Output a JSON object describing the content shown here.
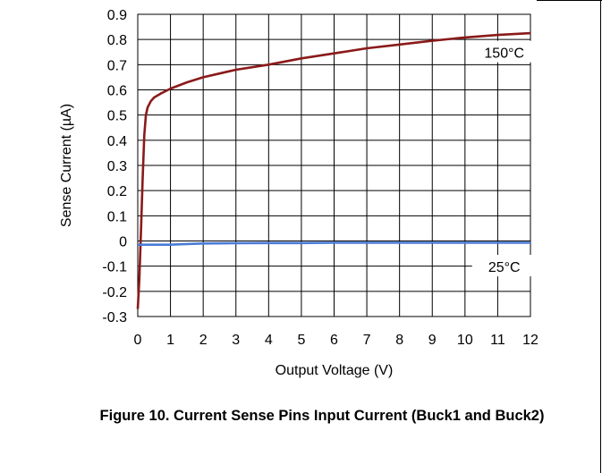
{
  "caption": "Figure 10. Current Sense Pins Input Current (Buck1 and Buck2)",
  "chart_data": {
    "type": "line",
    "title": "",
    "xlabel": "Output Voltage (V)",
    "ylabel": "Sense Current (µA)",
    "xlim": [
      0,
      12
    ],
    "ylim": [
      -0.3,
      0.9
    ],
    "xticks": [
      0,
      1,
      2,
      3,
      4,
      5,
      6,
      7,
      8,
      9,
      10,
      11,
      12
    ],
    "yticks": [
      0.9,
      0.8,
      0.7,
      0.6,
      0.5,
      0.4,
      0.3,
      0.2,
      0.1,
      0,
      -0.1,
      -0.2,
      -0.3
    ],
    "ytick_labels": [
      "0.9",
      "0.8",
      "0.7",
      "0.6",
      "0.5",
      "0.4",
      "0.3",
      "0.2",
      "0.1",
      "0",
      "-0.1",
      "-0.2",
      "-0.3"
    ],
    "grid": true,
    "series": [
      {
        "name": "150°C",
        "color": "#8b1a1a",
        "x": [
          0,
          0.05,
          0.1,
          0.15,
          0.2,
          0.25,
          0.3,
          0.4,
          0.5,
          0.7,
          1.0,
          1.5,
          2,
          2.5,
          3,
          4,
          5,
          6,
          7,
          8,
          9,
          10,
          11,
          12
        ],
        "y": [
          -0.27,
          -0.15,
          0.05,
          0.25,
          0.42,
          0.5,
          0.53,
          0.555,
          0.57,
          0.585,
          0.605,
          0.63,
          0.65,
          0.665,
          0.68,
          0.7,
          0.725,
          0.745,
          0.765,
          0.78,
          0.795,
          0.808,
          0.818,
          0.825
        ]
      },
      {
        "name": "25°C",
        "color": "#4a7bd6",
        "x": [
          0,
          0.5,
          1.0,
          1.3,
          2,
          3,
          4,
          5,
          6,
          7,
          8,
          9,
          10,
          11,
          12
        ],
        "y": [
          -0.015,
          -0.015,
          -0.015,
          -0.013,
          -0.01,
          -0.009,
          -0.008,
          -0.008,
          -0.007,
          -0.007,
          -0.007,
          -0.007,
          -0.007,
          -0.007,
          -0.007
        ]
      }
    ],
    "annotations": [
      {
        "text": "150°C",
        "series": 0
      },
      {
        "text": "25°C",
        "series": 1
      }
    ]
  }
}
